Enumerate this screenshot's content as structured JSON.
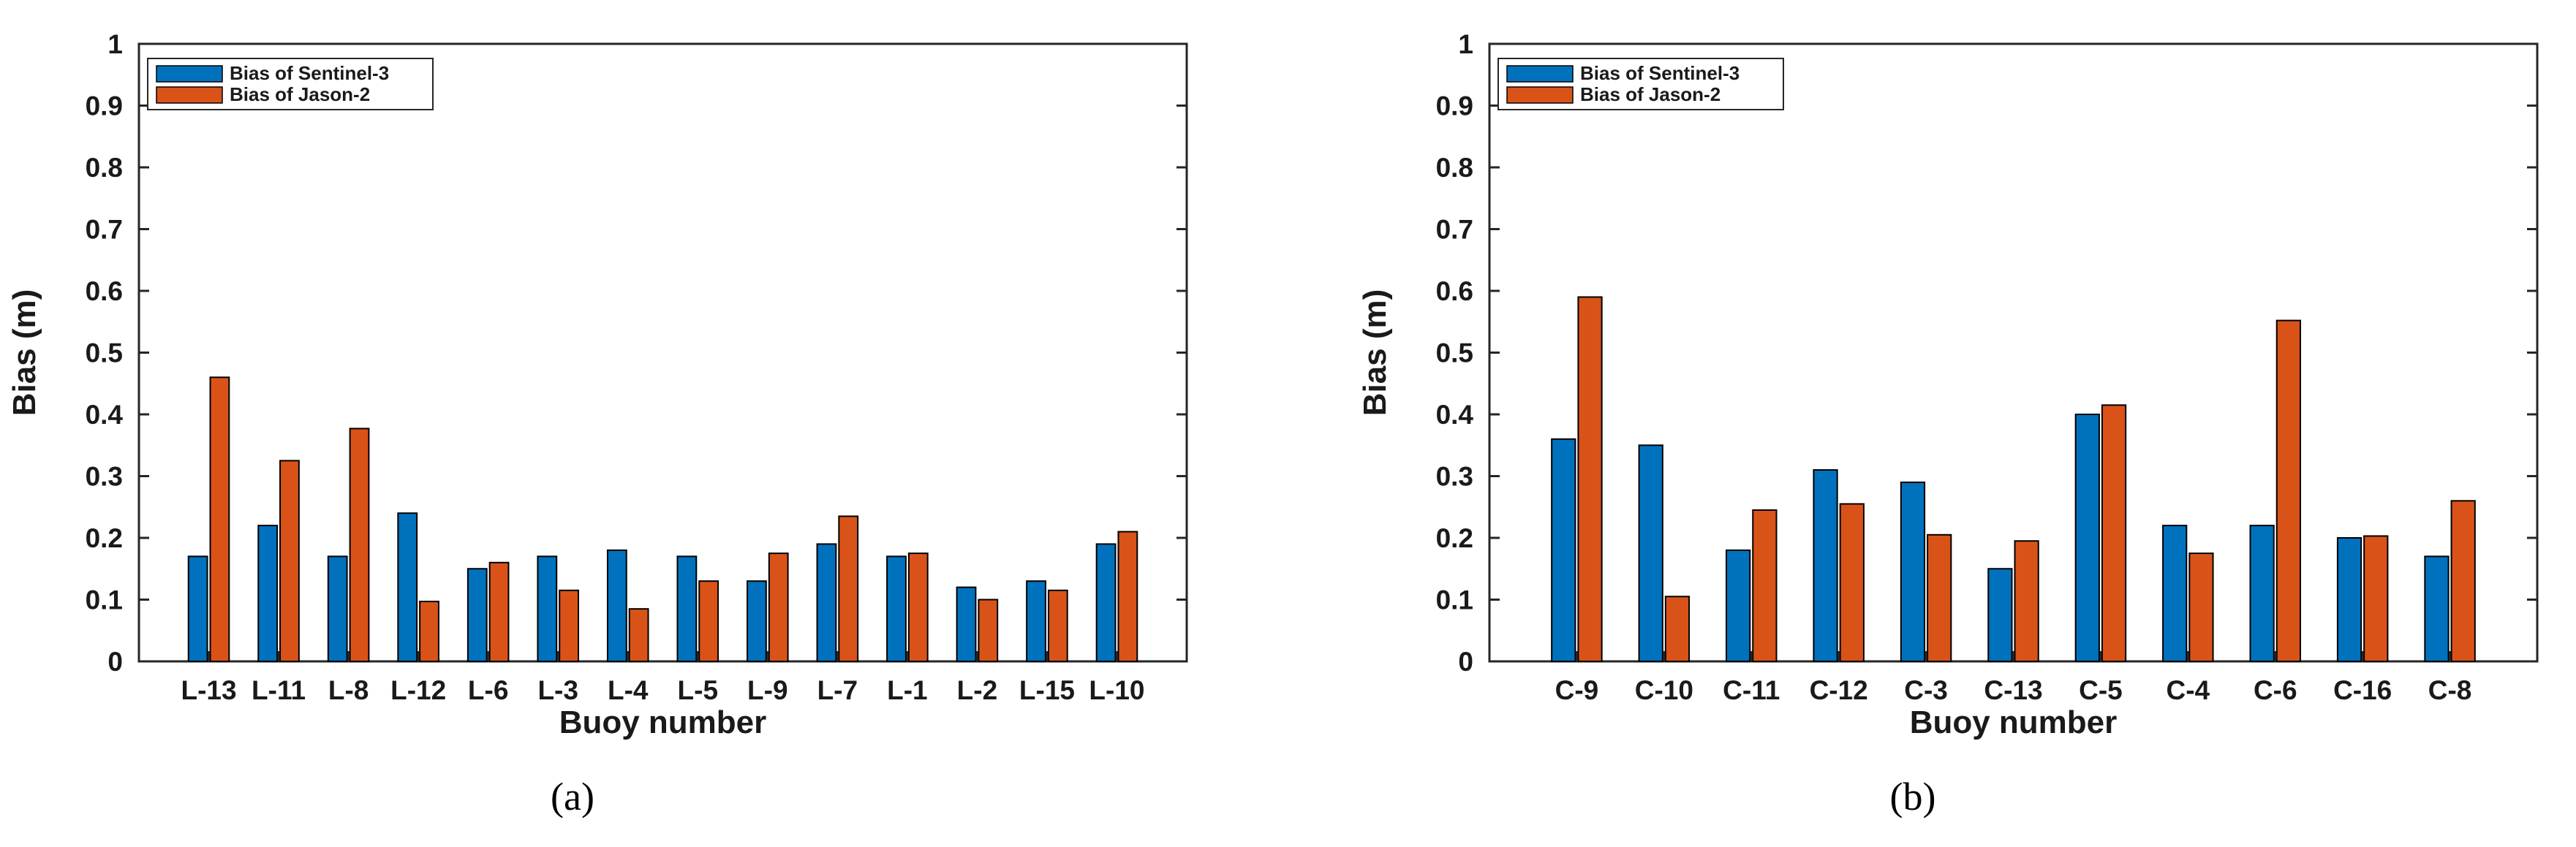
{
  "colors": {
    "sentinel": "#0072BD",
    "jason": "#D95319"
  },
  "chart_data": [
    {
      "type": "bar",
      "panel_label": "a",
      "caption": "(a)",
      "xlabel": "Buoy number",
      "ylabel": "Bias (m)",
      "ylim": [
        0,
        1
      ],
      "yticks": [
        "0",
        "0.1",
        "0.2",
        "0.3",
        "0.4",
        "0.5",
        "0.6",
        "0.7",
        "0.8",
        "0.9",
        "1"
      ],
      "categories": [
        "L-13",
        "L-11",
        "L-8",
        "L-12",
        "L-6",
        "L-3",
        "L-4",
        "L-5",
        "L-9",
        "L-7",
        "L-1",
        "L-2",
        "L-15",
        "L-10"
      ],
      "legend_position": "top-left",
      "series": [
        {
          "name": "Bias of Sentinel-3",
          "values": [
            0.17,
            0.22,
            0.17,
            0.24,
            0.15,
            0.17,
            0.18,
            0.17,
            0.13,
            0.19,
            0.17,
            0.12,
            0.13,
            0.19
          ]
        },
        {
          "name": "Bias of Jason-2",
          "values": [
            0.46,
            0.325,
            0.377,
            0.097,
            0.16,
            0.115,
            0.085,
            0.13,
            0.175,
            0.235,
            0.175,
            0.1,
            0.115,
            0.21
          ]
        }
      ]
    },
    {
      "type": "bar",
      "panel_label": "b",
      "caption": "(b)",
      "xlabel": "Buoy number",
      "ylabel": "Bias (m)",
      "ylim": [
        0,
        1
      ],
      "yticks": [
        "0",
        "0.1",
        "0.2",
        "0.3",
        "0.4",
        "0.5",
        "0.6",
        "0.7",
        "0.8",
        "0.9",
        "1"
      ],
      "categories": [
        "C-9",
        "C-10",
        "C-11",
        "C-12",
        "C-3",
        "C-13",
        "C-5",
        "C-4",
        "C-6",
        "C-16",
        "C-8"
      ],
      "legend_position": "top-left",
      "series": [
        {
          "name": "Bias of Sentinel-3",
          "values": [
            0.36,
            0.35,
            0.18,
            0.31,
            0.29,
            0.15,
            0.4,
            0.22,
            0.22,
            0.2,
            0.17
          ]
        },
        {
          "name": "Bias of Jason-2",
          "values": [
            0.59,
            0.105,
            0.245,
            0.255,
            0.205,
            0.195,
            0.415,
            0.175,
            0.552,
            0.203,
            0.26
          ]
        }
      ]
    }
  ]
}
